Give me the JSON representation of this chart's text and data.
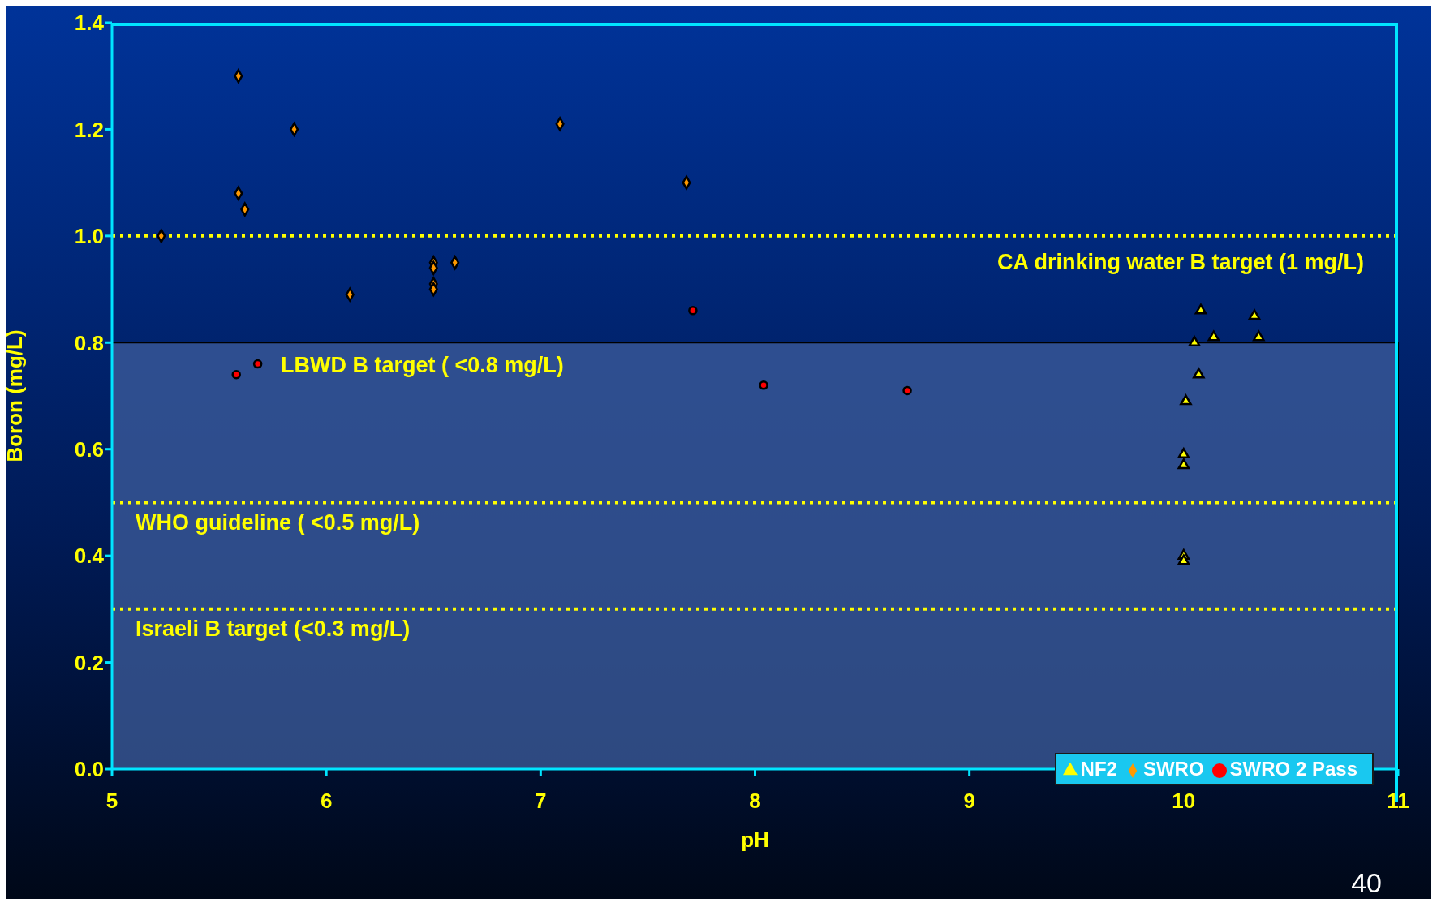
{
  "chart_data": {
    "type": "scatter",
    "xlabel": "pH",
    "ylabel": "Boron (mg/L)",
    "xlim": [
      5,
      11
    ],
    "xticks": [
      5,
      6,
      7,
      8,
      9,
      10,
      11
    ],
    "ylim": [
      0,
      1.4
    ],
    "yticks": [
      {
        "value": 0,
        "label": "0.0"
      },
      0.2,
      0.4,
      0.6,
      0.8,
      {
        "value": 1,
        "label": "1.0"
      },
      1.2,
      1.4
    ],
    "series": [
      {
        "name": "NF2",
        "color": "#ffff00",
        "marker": "triangle",
        "x": [
          10.08,
          10.33,
          10.05,
          10.14,
          10.35,
          10.07,
          10.01,
          10.0,
          10.0,
          10.0,
          10.0
        ],
        "values": [
          0.86,
          0.85,
          0.8,
          0.81,
          0.81,
          0.74,
          0.69,
          0.59,
          0.57,
          0.4,
          0.39
        ]
      },
      {
        "name": "SWRO",
        "color": "#ff9900",
        "marker": "diamond",
        "x": [
          5.23,
          5.59,
          5.85,
          5.59,
          5.62,
          6.11,
          6.5,
          6.5,
          6.5,
          6.5,
          6.6,
          7.09,
          7.68
        ],
        "values": [
          1.0,
          1.3,
          1.2,
          1.08,
          1.05,
          0.89,
          0.95,
          0.94,
          0.91,
          0.9,
          0.95,
          1.21,
          1.1
        ]
      },
      {
        "name": "SWRO 2 Pass",
        "color": "#ff0000",
        "marker": "circle",
        "x": [
          5.58,
          5.68,
          7.71,
          8.04,
          8.71
        ],
        "values": [
          0.74,
          0.76,
          0.86,
          0.72,
          0.71
        ]
      }
    ],
    "bands": [
      {
        "axis": "y",
        "from": 0,
        "to": 0.8,
        "label": "LBWD B target ( <0.8 mg/L)",
        "color": "#3d5e9c"
      }
    ],
    "ref_lines": [
      {
        "axis": "y",
        "value": 1.0,
        "label": "CA drinking water B target (1 mg/L)",
        "color": "#ffff00",
        "line_style": "dotted"
      },
      {
        "axis": "y",
        "value": 0.5,
        "label": "WHO guideline ( <0.5 mg/L)",
        "color": "#ffff00",
        "line_style": "dotted"
      },
      {
        "axis": "y",
        "value": 0.3,
        "label": "Israeli B target (<0.3 mg/L)",
        "color": "#ffff00",
        "line_style": "dotted"
      }
    ],
    "legend": "bottom right",
    "annotations": [
      "40"
    ]
  }
}
